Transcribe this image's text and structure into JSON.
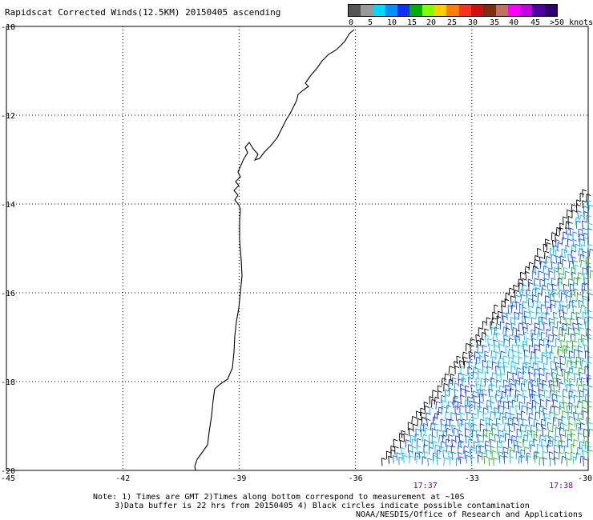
{
  "title": "Rapidscat Corrected Winds(12.5KM) 20150405 ascending",
  "legend": {
    "colors": [
      "#555555",
      "#9a9a9a",
      "#00d8ff",
      "#0090ff",
      "#1030ff",
      "#00b000",
      "#7fff00",
      "#ffd000",
      "#ff8000",
      "#ff3020",
      "#d01010",
      "#7a3010",
      "#c07060",
      "#ff00ff",
      "#c000e0",
      "#5000a0",
      "#300070"
    ],
    "labels": [
      "0",
      "5",
      "10",
      "15",
      "20",
      "25",
      "30",
      "35",
      "40",
      "45",
      ">50 knots"
    ]
  },
  "map": {
    "lat_labels": [
      "-10",
      "-12",
      "-14",
      "-16",
      "-18",
      "-20"
    ],
    "lon_labels": [
      "-45",
      "-42",
      "-39",
      "-36",
      "-33",
      "-30"
    ],
    "lon_range": [
      -45,
      -30
    ],
    "lat_range": [
      -20,
      -10
    ],
    "grid": "dotted",
    "times": [
      "17:37",
      "17:38"
    ]
  },
  "notes": {
    "line1": "Note: 1) Times are GMT 2)Times along bottom correspond to measurement at ~10S",
    "line2": "3)Data buffer is 22 hrs from 20150405 4) Black circles indicate possible contamination",
    "line3": "NOAA/NESDIS/Office of Research and Applications"
  }
}
